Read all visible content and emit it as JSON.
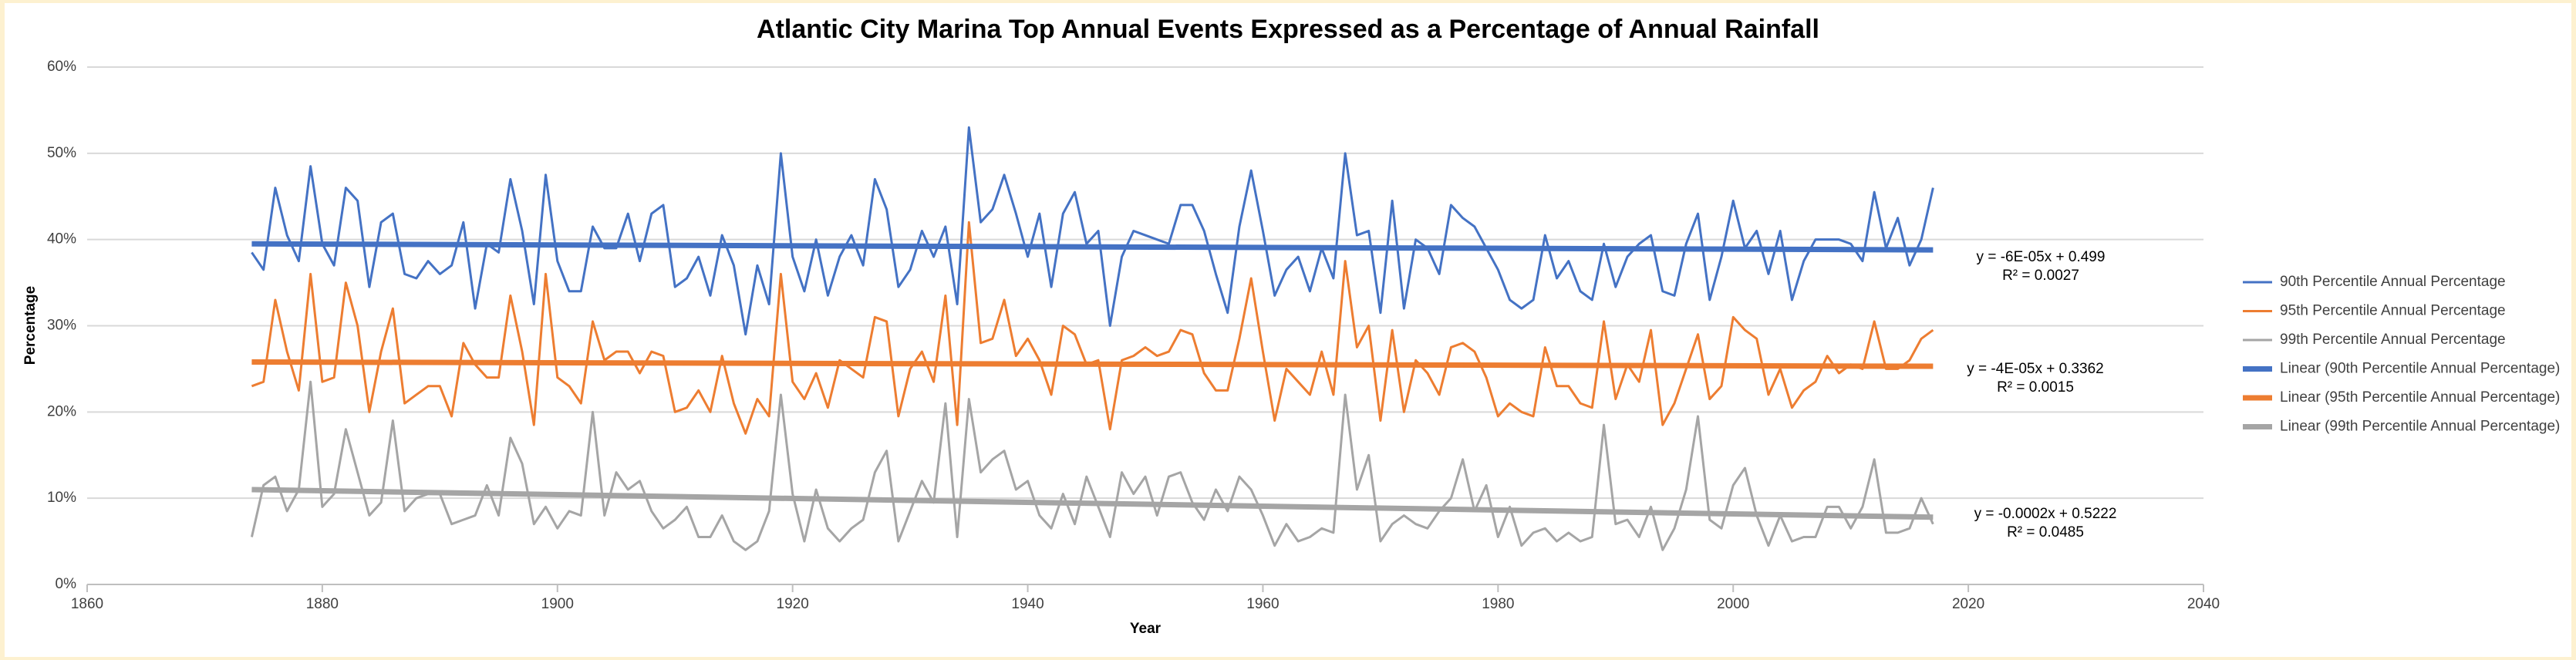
{
  "chart_data": {
    "type": "line",
    "title": "Atlantic City Marina Top Annual Events Expressed as a Percentage of Annual Rainfall",
    "x_label": "Year",
    "y_label": "Percentage",
    "xlim": [
      1860,
      2040
    ],
    "xticks": [
      1860,
      1880,
      1900,
      1920,
      1940,
      1960,
      1980,
      2000,
      2020,
      2040
    ],
    "ylim": [
      0,
      60
    ],
    "yticks": [
      {
        "value": 0,
        "label": "0%"
      },
      {
        "value": 10,
        "label": "10%"
      },
      {
        "value": 20,
        "label": "20%"
      },
      {
        "value": 30,
        "label": "30%"
      },
      {
        "value": 40,
        "label": "40%"
      },
      {
        "value": 50,
        "label": "50%"
      },
      {
        "value": 60,
        "label": "60%"
      }
    ],
    "grid": true,
    "legend": "right",
    "x": [
      1874,
      1875,
      1876,
      1877,
      1878,
      1879,
      1880,
      1881,
      1882,
      1883,
      1884,
      1885,
      1886,
      1887,
      1888,
      1889,
      1890,
      1891,
      1892,
      1893,
      1894,
      1895,
      1896,
      1897,
      1898,
      1899,
      1900,
      1901,
      1902,
      1903,
      1904,
      1905,
      1906,
      1907,
      1908,
      1909,
      1910,
      1911,
      1912,
      1913,
      1914,
      1915,
      1916,
      1917,
      1918,
      1919,
      1920,
      1921,
      1922,
      1923,
      1924,
      1925,
      1926,
      1927,
      1928,
      1929,
      1930,
      1931,
      1932,
      1933,
      1934,
      1935,
      1936,
      1937,
      1938,
      1939,
      1940,
      1941,
      1942,
      1943,
      1944,
      1945,
      1946,
      1947,
      1948,
      1949,
      1950,
      1951,
      1952,
      1953,
      1954,
      1955,
      1956,
      1957,
      1958,
      1959,
      1960,
      1961,
      1962,
      1963,
      1964,
      1965,
      1966,
      1967,
      1968,
      1969,
      1970,
      1971,
      1972,
      1973,
      1974,
      1975,
      1976,
      1977,
      1978,
      1979,
      1980,
      1981,
      1982,
      1983,
      1984,
      1985,
      1986,
      1987,
      1988,
      1989,
      1990,
      1991,
      1992,
      1993,
      1994,
      1995,
      1996,
      1997,
      1998,
      1999,
      2000,
      2001,
      2002,
      2003,
      2004,
      2005,
      2006,
      2007,
      2008,
      2009,
      2010,
      2011,
      2012,
      2013,
      2014,
      2015,
      2016,
      2017
    ],
    "series": [
      {
        "name": "90th Percentile Annual Percentage",
        "color": "#4472c4",
        "values": [
          38.5,
          36.5,
          46,
          40.5,
          37.5,
          48.5,
          39.5,
          37,
          46,
          44.5,
          34.5,
          42,
          43,
          36,
          35.5,
          37.5,
          36,
          37,
          42,
          32,
          39.5,
          38.5,
          47,
          41,
          32.5,
          47.5,
          37.5,
          34,
          34,
          41.5,
          39,
          39,
          43,
          37.5,
          43,
          44,
          34.5,
          35.5,
          38,
          33.5,
          40.5,
          37,
          29,
          37,
          32.5,
          50,
          38,
          34,
          40,
          33.5,
          38,
          40.5,
          37,
          47,
          43.5,
          34.5,
          36.5,
          41,
          38,
          41.5,
          32.5,
          53,
          42,
          43.5,
          47.5,
          43,
          38,
          43,
          34.5,
          43,
          45.5,
          39.5,
          41,
          30,
          38,
          41,
          40.5,
          40,
          39.5,
          44,
          44,
          41,
          36,
          31.5,
          41.5,
          48,
          41,
          33.5,
          36.5,
          38,
          34,
          39,
          35.5,
          50,
          40.5,
          41,
          31.5,
          44.5,
          32,
          40,
          39,
          36,
          44,
          42.5,
          41.5,
          39,
          36.5,
          33,
          32,
          33,
          40.5,
          35.5,
          37.5,
          34,
          33,
          39.5,
          34.5,
          38,
          39.5,
          40.5,
          34,
          33.5,
          39.5,
          43,
          33,
          38,
          44.5,
          39,
          41,
          36,
          41,
          33,
          37.5,
          40,
          40,
          40,
          39.5,
          37.5,
          45.5,
          39,
          42.5,
          37,
          40,
          46
        ]
      },
      {
        "name": "95th Percentile Annual Percentage",
        "color": "#ed7d31",
        "values": [
          23,
          23.5,
          33,
          27,
          22.5,
          36,
          23.5,
          24,
          35,
          30,
          20,
          27,
          32,
          21,
          22,
          23,
          23,
          19.5,
          28,
          25.5,
          24,
          24,
          33.5,
          27,
          18.5,
          36,
          24,
          23,
          21,
          30.5,
          26,
          27,
          27,
          24.5,
          27,
          26.5,
          20,
          20.5,
          22.5,
          20,
          26.5,
          21,
          17.5,
          21.5,
          19.5,
          36,
          23.5,
          21.5,
          24.5,
          20.5,
          26,
          25,
          24,
          31,
          30.5,
          19.5,
          25,
          27,
          23.5,
          33.5,
          18.5,
          42,
          28,
          28.5,
          33,
          26.5,
          28.5,
          26,
          22,
          30,
          29,
          25.5,
          26,
          18,
          26,
          26.5,
          27.5,
          26.5,
          27,
          29.5,
          29,
          24.5,
          22.5,
          22.5,
          28.5,
          35.5,
          27,
          19,
          25,
          23.5,
          22,
          27,
          22,
          37.5,
          27.5,
          30,
          19,
          29.5,
          20,
          26,
          24.5,
          22,
          27.5,
          28,
          27,
          24,
          19.5,
          21,
          20,
          19.5,
          27.5,
          23,
          23,
          21,
          20.5,
          30.5,
          21.5,
          25.5,
          23.5,
          29.5,
          18.5,
          21,
          25,
          29,
          21.5,
          23,
          31,
          29.5,
          28.5,
          22,
          25,
          20.5,
          22.5,
          23.5,
          26.5,
          24.5,
          25.5,
          25,
          30.5,
          25,
          25,
          26,
          28.5,
          29.5
        ]
      },
      {
        "name": "99th Percentile Annual Percentage",
        "color": "#a5a5a5",
        "values": [
          5.5,
          11.5,
          12.5,
          8.5,
          11,
          23.5,
          9,
          10.5,
          18,
          13,
          8,
          9.5,
          19,
          8.5,
          10,
          10.5,
          10.5,
          7,
          7.5,
          8,
          11.5,
          8,
          17,
          14,
          7,
          9,
          6.5,
          8.5,
          8,
          20,
          8,
          13,
          11,
          12,
          8.5,
          6.5,
          7.5,
          9,
          5.5,
          5.5,
          8,
          5,
          4,
          5,
          8.5,
          22,
          10.5,
          5,
          11,
          6.5,
          5,
          6.5,
          7.5,
          13,
          15.5,
          5,
          8.5,
          12,
          9.5,
          21,
          5.5,
          21.5,
          13,
          14.5,
          15.5,
          11,
          12,
          8,
          6.5,
          10.5,
          7,
          12.5,
          9,
          5.5,
          13,
          10.5,
          12.5,
          8,
          12.5,
          13,
          9.5,
          7.5,
          11,
          8.5,
          12.5,
          11,
          8,
          4.5,
          7,
          5,
          5.5,
          6.5,
          6,
          22,
          11,
          15,
          5,
          7,
          8,
          7,
          6.5,
          8.5,
          10,
          14.5,
          8.5,
          11.5,
          5.5,
          9,
          4.5,
          6,
          6.5,
          5,
          6,
          5,
          5.5,
          18.5,
          7,
          7.5,
          5.5,
          9,
          4,
          6.5,
          11,
          19.5,
          7.5,
          6.5,
          11.5,
          13.5,
          8,
          4.5,
          8,
          5,
          5.5,
          5.5,
          9,
          9,
          6.5,
          9,
          14.5,
          6,
          6,
          6.5,
          10,
          7
        ]
      }
    ],
    "trendlines": [
      {
        "name": "Linear (90th Percentile Annual Percentage)",
        "color": "#4472c4",
        "x": [
          1874,
          2017
        ],
        "values": [
          39.5,
          38.8
        ],
        "equation": "y = -6E-05x + 0.499",
        "r_squared": "R² = 0.0027"
      },
      {
        "name": "Linear (95th Percentile Annual Percentage)",
        "color": "#ed7d31",
        "x": [
          1874,
          2017
        ],
        "values": [
          25.8,
          25.3
        ],
        "equation": "y = -4E-05x + 0.3362",
        "r_squared": "R² = 0.0015"
      },
      {
        "name": "Linear (99th Percentile Annual Percentage)",
        "color": "#a5a5a5",
        "x": [
          1874,
          2017
        ],
        "values": [
          11.0,
          7.8
        ],
        "equation": "y = -0.0002x + 0.5222",
        "r_squared": "R² = 0.0485"
      }
    ]
  }
}
